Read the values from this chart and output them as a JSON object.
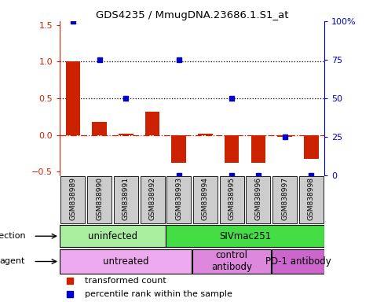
{
  "title": "GDS4235 / MmugDNA.23686.1.S1_at",
  "samples": [
    "GSM838989",
    "GSM838990",
    "GSM838991",
    "GSM838992",
    "GSM838993",
    "GSM838994",
    "GSM838995",
    "GSM838996",
    "GSM838997",
    "GSM838998"
  ],
  "bar_values": [
    1.0,
    0.18,
    0.02,
    0.32,
    -0.38,
    0.02,
    -0.38,
    -0.38,
    -0.02,
    -0.32
  ],
  "percentile_values": [
    100,
    75,
    50,
    null,
    75,
    null,
    50,
    null,
    25,
    null
  ],
  "percentile_bottom": [
    null,
    null,
    null,
    null,
    0,
    null,
    0,
    0,
    null,
    0
  ],
  "ylim": [
    -0.55,
    1.55
  ],
  "y2lim": [
    0,
    100
  ],
  "yticks": [
    -0.5,
    0,
    0.5,
    1.0,
    1.5
  ],
  "y2ticks": [
    0,
    25,
    50,
    75,
    100
  ],
  "hlines": [
    1.0,
    0.5
  ],
  "bar_color": "#cc2200",
  "scatter_color": "#0000cc",
  "zero_line_color": "#cc2200",
  "infection_row": [
    {
      "label": "uninfected",
      "start": 0,
      "end": 4,
      "color": "#aaeea0"
    },
    {
      "label": "SIVmac251",
      "start": 4,
      "end": 10,
      "color": "#44dd44"
    }
  ],
  "agent_row": [
    {
      "label": "untreated",
      "start": 0,
      "end": 5,
      "color": "#eeaaee"
    },
    {
      "label": "control\nantibody",
      "start": 5,
      "end": 8,
      "color": "#dd88dd"
    },
    {
      "label": "PD-1 antibody",
      "start": 8,
      "end": 10,
      "color": "#cc66cc"
    }
  ],
  "legend_items": [
    {
      "label": "transformed count",
      "color": "#cc2200"
    },
    {
      "label": "percentile rank within the sample",
      "color": "#0000cc"
    }
  ]
}
